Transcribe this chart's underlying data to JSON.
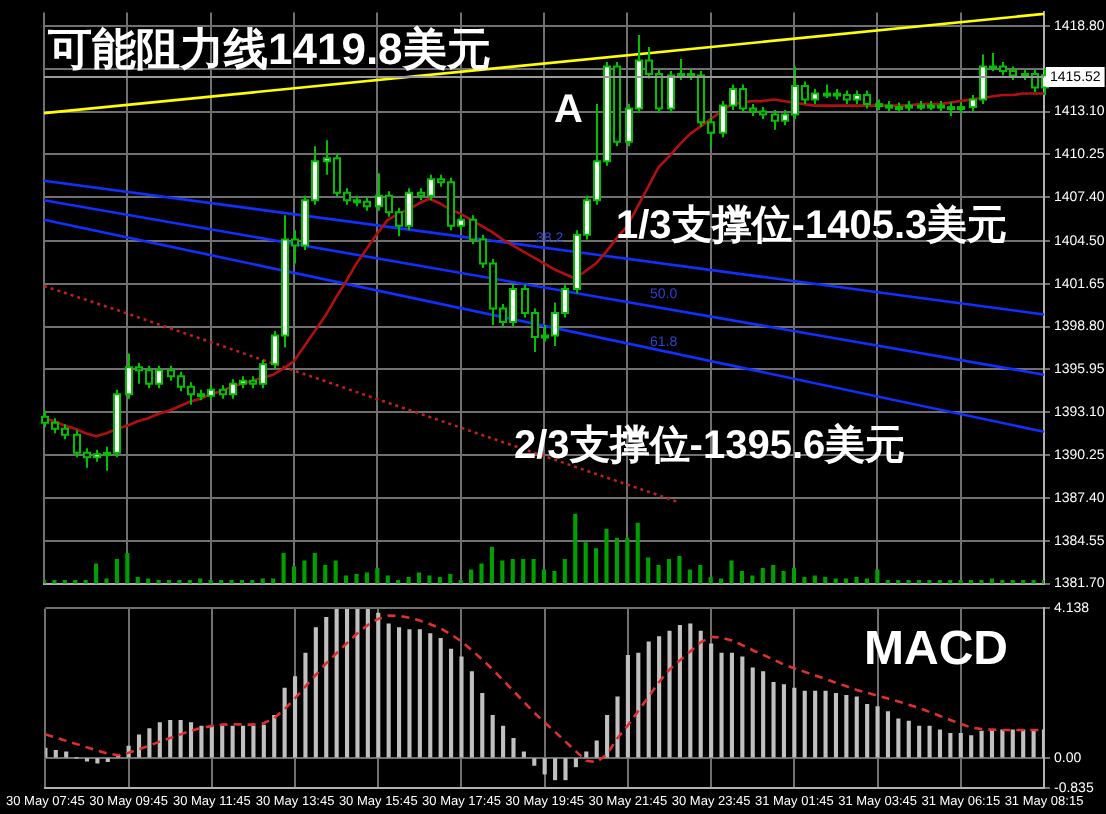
{
  "chart_data": [
    {
      "type": "candlestick",
      "title": "可能阻力线1419.8美元",
      "categories": [
        "30 May 07:45",
        null,
        null,
        null,
        null,
        null,
        null,
        null,
        "30 May 09:45",
        null,
        null,
        null,
        null,
        null,
        null,
        null,
        "30 May 11:45",
        null,
        null,
        null,
        null,
        null,
        null,
        null,
        "30 May 13:45",
        null,
        null,
        null,
        null,
        null,
        null,
        null,
        "30 May 15:45",
        null,
        null,
        null,
        null,
        null,
        null,
        null,
        "30 May 17:45",
        null,
        null,
        null,
        null,
        null,
        null,
        null,
        "30 May 19:45",
        null,
        null,
        null,
        null,
        null,
        null,
        null,
        "30 May 21:45",
        null,
        null,
        null,
        null,
        null,
        null,
        null,
        "30 May 23:45",
        null,
        null,
        null,
        null,
        null,
        null,
        null,
        "31 May 01:45",
        null,
        null,
        null,
        null,
        null,
        null,
        null,
        "31 May 03:45",
        null,
        null,
        null,
        null,
        null,
        null,
        null,
        "31 May 06:15",
        null,
        null,
        null,
        null,
        null,
        null,
        null,
        "31 May 08:15"
      ],
      "ohlc": [
        [
          1392.8,
          1393.2,
          1392.1,
          1392.4
        ],
        [
          1392.4,
          1392.7,
          1391.7,
          1392.0
        ],
        [
          1392.0,
          1392.3,
          1391.3,
          1391.6
        ],
        [
          1391.6,
          1391.9,
          1390.1,
          1390.4
        ],
        [
          1390.4,
          1390.7,
          1389.4,
          1390.1
        ],
        [
          1390.1,
          1390.6,
          1389.8,
          1390.3
        ],
        [
          1390.3,
          1390.8,
          1389.2,
          1390.4
        ],
        [
          1390.4,
          1394.6,
          1390.1,
          1394.3
        ],
        [
          1394.3,
          1397.0,
          1394.0,
          1396.1
        ],
        [
          1396.1,
          1396.4,
          1395.0,
          1395.9
        ],
        [
          1395.9,
          1396.2,
          1394.7,
          1395.0
        ],
        [
          1395.0,
          1396.2,
          1394.7,
          1395.9
        ],
        [
          1395.9,
          1396.2,
          1395.2,
          1395.5
        ],
        [
          1395.5,
          1395.8,
          1394.5,
          1394.8
        ],
        [
          1394.8,
          1395.1,
          1393.6,
          1394.3
        ],
        [
          1394.3,
          1394.6,
          1393.9,
          1394.2
        ],
        [
          1394.2,
          1394.9,
          1393.9,
          1394.6
        ],
        [
          1394.6,
          1394.9,
          1394.0,
          1394.3
        ],
        [
          1394.3,
          1395.3,
          1394.0,
          1395.0
        ],
        [
          1395.0,
          1395.5,
          1394.7,
          1395.2
        ],
        [
          1395.2,
          1395.5,
          1394.7,
          1395.0
        ],
        [
          1395.0,
          1396.6,
          1394.7,
          1396.3
        ],
        [
          1396.3,
          1398.5,
          1396.0,
          1398.2
        ],
        [
          1398.2,
          1406.2,
          1397.4,
          1404.6
        ],
        [
          1404.6,
          1405.2,
          1403.0,
          1404.2
        ],
        [
          1404.2,
          1407.5,
          1403.9,
          1407.2
        ],
        [
          1407.2,
          1410.8,
          1406.9,
          1409.8
        ],
        [
          1409.8,
          1411.2,
          1408.9,
          1410.0
        ],
        [
          1410.0,
          1410.3,
          1407.4,
          1407.7
        ],
        [
          1407.7,
          1408.0,
          1406.9,
          1407.2
        ],
        [
          1407.2,
          1407.5,
          1406.8,
          1407.1
        ],
        [
          1407.1,
          1407.4,
          1406.5,
          1406.8
        ],
        [
          1406.8,
          1409.0,
          1406.5,
          1407.5
        ],
        [
          1407.5,
          1407.8,
          1406.1,
          1406.4
        ],
        [
          1406.4,
          1406.7,
          1404.8,
          1405.5
        ],
        [
          1405.5,
          1408.0,
          1405.2,
          1407.7
        ],
        [
          1407.7,
          1408.0,
          1407.2,
          1407.5
        ],
        [
          1407.5,
          1408.9,
          1407.2,
          1408.6
        ],
        [
          1408.6,
          1408.9,
          1408.1,
          1408.4
        ],
        [
          1408.4,
          1408.7,
          1405.2,
          1405.5
        ],
        [
          1405.5,
          1406.2,
          1405.2,
          1405.9
        ],
        [
          1405.9,
          1406.2,
          1404.3,
          1404.6
        ],
        [
          1404.6,
          1404.9,
          1402.7,
          1403.0
        ],
        [
          1403.0,
          1403.3,
          1398.9,
          1400.0
        ],
        [
          1400.0,
          1400.3,
          1398.8,
          1399.1
        ],
        [
          1399.1,
          1401.6,
          1398.8,
          1401.3
        ],
        [
          1401.3,
          1401.6,
          1399.4,
          1399.7
        ],
        [
          1399.7,
          1400.0,
          1397.1,
          1398.1
        ],
        [
          1398.1,
          1398.9,
          1397.8,
          1398.2
        ],
        [
          1398.2,
          1400.4,
          1397.5,
          1399.7
        ],
        [
          1399.7,
          1401.6,
          1399.4,
          1401.3
        ],
        [
          1401.3,
          1405.2,
          1401.0,
          1404.9
        ],
        [
          1404.9,
          1407.5,
          1404.6,
          1407.2
        ],
        [
          1407.2,
          1413.6,
          1406.9,
          1409.8
        ],
        [
          1409.8,
          1416.4,
          1409.5,
          1416.1
        ],
        [
          1416.1,
          1416.4,
          1410.8,
          1411.1
        ],
        [
          1411.1,
          1413.6,
          1410.8,
          1413.3
        ],
        [
          1413.3,
          1418.2,
          1413.0,
          1416.5
        ],
        [
          1416.5,
          1417.4,
          1415.3,
          1415.6
        ],
        [
          1415.6,
          1415.9,
          1413.0,
          1413.3
        ],
        [
          1413.3,
          1415.8,
          1413.0,
          1415.5
        ],
        [
          1415.5,
          1416.6,
          1415.2,
          1415.6
        ],
        [
          1415.6,
          1415.9,
          1415.2,
          1415.5
        ],
        [
          1415.5,
          1415.8,
          1412.1,
          1412.4
        ],
        [
          1412.4,
          1412.7,
          1410.7,
          1411.7
        ],
        [
          1411.7,
          1413.8,
          1411.4,
          1413.5
        ],
        [
          1413.5,
          1414.9,
          1413.2,
          1414.6
        ],
        [
          1414.6,
          1414.9,
          1413.0,
          1413.3
        ],
        [
          1413.3,
          1413.6,
          1412.8,
          1413.1
        ],
        [
          1413.1,
          1413.4,
          1412.6,
          1412.9
        ],
        [
          1412.9,
          1413.2,
          1411.9,
          1412.5
        ],
        [
          1412.5,
          1413.2,
          1412.2,
          1412.9
        ],
        [
          1412.9,
          1416.1,
          1412.6,
          1414.8
        ],
        [
          1414.8,
          1415.1,
          1413.6,
          1413.9
        ],
        [
          1413.9,
          1414.6,
          1413.6,
          1414.3
        ],
        [
          1414.3,
          1414.9,
          1414.0,
          1414.3
        ],
        [
          1414.3,
          1414.6,
          1413.9,
          1414.2
        ],
        [
          1414.2,
          1414.5,
          1413.6,
          1413.9
        ],
        [
          1413.9,
          1414.5,
          1413.6,
          1414.2
        ],
        [
          1414.2,
          1414.5,
          1413.3,
          1413.6
        ],
        [
          1413.6,
          1413.9,
          1413.2,
          1413.5
        ],
        [
          1413.5,
          1413.8,
          1413.1,
          1413.4
        ],
        [
          1413.4,
          1413.7,
          1413.1,
          1413.4
        ],
        [
          1413.4,
          1413.8,
          1413.1,
          1413.5
        ],
        [
          1413.5,
          1413.8,
          1413.2,
          1413.5
        ],
        [
          1413.5,
          1413.8,
          1413.2,
          1413.5
        ],
        [
          1413.5,
          1413.8,
          1413.1,
          1413.4
        ],
        [
          1413.4,
          1413.7,
          1412.8,
          1413.3
        ],
        [
          1413.3,
          1413.7,
          1413.0,
          1413.4
        ],
        [
          1413.4,
          1414.2,
          1413.1,
          1413.9
        ],
        [
          1413.9,
          1416.9,
          1413.6,
          1416.1
        ],
        [
          1416.1,
          1417.0,
          1415.8,
          1416.1
        ],
        [
          1416.1,
          1416.4,
          1415.5,
          1415.8
        ],
        [
          1415.8,
          1416.1,
          1415.2,
          1415.5
        ],
        [
          1415.5,
          1415.9,
          1415.2,
          1415.6
        ],
        [
          1415.6,
          1415.9,
          1414.4,
          1414.7
        ],
        [
          1414.7,
          1416.0,
          1414.2,
          1415.52
        ]
      ],
      "color": "#00c000",
      "colors": [
        "#000000",
        "#000000",
        "#000000",
        "#000000",
        "#000000",
        "#ffffff",
        "#ffffff",
        "#ffffff",
        "#ffffff",
        "#000000",
        "#000000",
        "#ffffff",
        "#000000",
        "#000000",
        "#000000",
        "#000000",
        "#ffffff",
        "#000000",
        "#ffffff",
        "#ffffff",
        "#000000",
        "#ffffff",
        "#ffffff",
        "#ffffff",
        "#000000",
        "#ffffff",
        "#ffffff",
        "#ffffff",
        "#000000",
        "#000000",
        "#000000",
        "#000000",
        "#ffffff",
        "#000000",
        "#000000",
        "#ffffff",
        "#000000",
        "#ffffff",
        "#000000",
        "#000000",
        "#ffffff",
        "#000000",
        "#000000",
        "#000000",
        "#000000",
        "#ffffff",
        "#000000",
        "#000000",
        "#ffffff",
        "#ffffff",
        "#ffffff",
        "#ffffff",
        "#ffffff",
        "#ffffff",
        "#ffffff",
        "#000000",
        "#ffffff",
        "#ffffff",
        "#000000",
        "#000000",
        "#ffffff",
        "#ffffff",
        "#000000",
        "#000000",
        "#000000",
        "#ffffff",
        "#ffffff",
        "#000000",
        "#000000",
        "#000000",
        "#000000",
        "#ffffff",
        "#ffffff",
        "#000000",
        "#ffffff",
        "#ffffff",
        "#000000",
        "#000000",
        "#ffffff",
        "#000000",
        "#000000",
        "#000000",
        "#ffffff",
        "#ffffff",
        "#ffffff",
        "#ffffff",
        "#000000",
        "#000000",
        "#ffffff",
        "#ffffff",
        "#ffffff",
        "#ffffff",
        "#000000",
        "#000000",
        "#ffffff",
        "#000000",
        "#ffffff"
      ],
      "series": [
        {
          "type": "bar",
          "color": "#00a000",
          "values": [
            1381.9,
            1381.9,
            1381.9,
            1381.9,
            1381.9,
            1383.0,
            1382.0,
            1383.3,
            1383.7,
            1382.1,
            1382.0,
            1381.9,
            1381.9,
            1381.9,
            1381.9,
            1382.0,
            1381.9,
            1381.9,
            1381.9,
            1381.9,
            1381.9,
            1382.0,
            1382.0,
            1383.7,
            1382.8,
            1383.2,
            1383.7,
            1382.9,
            1383.2,
            1382.2,
            1382.3,
            1382.4,
            1382.7,
            1382.2,
            1381.9,
            1382.1,
            1382.4,
            1382.2,
            1382.1,
            1382.3,
            1381.9,
            1382.6,
            1383.0,
            1384.1,
            1383.2,
            1383.3,
            1383.3,
            1383.3,
            1382.6,
            1382.5,
            1383.3,
            1386.3,
            1384.4,
            1384.0,
            1385.3,
            1384.7,
            1384.7,
            1385.7,
            1383.4,
            1382.9,
            1383.3,
            1383.5,
            1382.6,
            1382.9,
            1382.1,
            1382.0,
            1383.2,
            1382.5,
            1382.2,
            1382.7,
            1382.9,
            1382.5,
            1382.7,
            1382.1,
            1382.2,
            1382.1,
            1382.0,
            1382.0,
            1382.1,
            1382.0,
            1382.6,
            1381.9,
            1381.9,
            1381.9,
            1381.9,
            1381.9,
            1381.9,
            1381.9,
            1381.9,
            1381.9,
            1381.9,
            1382.0,
            1381.9,
            1381.9,
            1381.9,
            1381.9,
            1381.9
          ]
        },
        {
          "type": "line",
          "color": "#b01010",
          "values": [
            1392.7,
            1392.5,
            1392.2,
            1392.0,
            1391.7,
            1391.5,
            1391.7,
            1392.0,
            1392.2,
            1392.5,
            1392.7,
            1393.0,
            1393.2,
            1393.5,
            1393.8,
            1394.0,
            1394.3,
            1394.5,
            1394.8,
            1395.0,
            1395.2,
            1395.4,
            1395.6,
            1396.0,
            1396.5,
            1397.5,
            1398.5,
            1399.5,
            1400.7,
            1401.8,
            1403.0,
            1404.0,
            1405.0,
            1405.9,
            1406.3,
            1406.6,
            1407.0,
            1407.3,
            1407.0,
            1406.6,
            1406.3,
            1405.9,
            1405.5,
            1405.1,
            1404.6,
            1404.2,
            1403.8,
            1403.4,
            1403.0,
            1402.6,
            1402.3,
            1402.0,
            1402.5,
            1403.0,
            1403.8,
            1404.7,
            1405.5,
            1406.8,
            1408.1,
            1409.4,
            1410.1,
            1410.9,
            1411.6,
            1412.1,
            1412.6,
            1413.1,
            1413.6,
            1413.7,
            1413.8,
            1413.8,
            1413.9,
            1413.8,
            1413.7,
            1413.6,
            1413.5,
            1413.5,
            1413.5,
            1413.5,
            1413.5,
            1413.5,
            1413.5,
            1413.5,
            1413.5,
            1413.5,
            1413.6,
            1413.6,
            1413.6,
            1413.7,
            1413.8,
            1413.9,
            1414.0,
            1414.1,
            1414.2,
            1414.2,
            1414.3,
            1414.3,
            1414.3
          ]
        },
        {
          "type": "line",
          "color": "#ffff00",
          "x": [
            "30 May 07:45",
            "31 May 08:15"
          ],
          "values": [
            1413.0,
            1419.6
          ]
        },
        {
          "type": "line",
          "color": "#1030ff",
          "x": [
            "30 May 07:45",
            "31 May 08:15"
          ],
          "values": [
            1408.5,
            1399.6
          ]
        },
        {
          "type": "line",
          "color": "#1030ff",
          "x": [
            "30 May 07:45",
            "31 May 08:15"
          ],
          "values": [
            1407.2,
            1395.6
          ]
        },
        {
          "type": "line",
          "color": "#1030ff",
          "x": [
            "30 May 07:45",
            "31 May 08:15"
          ],
          "values": [
            1405.9,
            1391.8
          ]
        },
        {
          "type": "line",
          "color": "#c02020",
          "line_style": "dotted",
          "values": [
            1401.5,
            null,
            null,
            null,
            null,
            null,
            null,
            1399.9,
            null,
            null,
            null,
            null,
            null,
            null,
            null,
            null,
            null,
            null,
            null,
            null,
            null,
            null,
            null,
            null,
            null,
            null,
            null,
            null,
            null,
            null,
            null,
            null,
            null,
            null,
            null,
            null,
            null,
            null,
            null,
            null,
            null,
            null,
            null,
            null,
            null,
            null,
            null,
            null,
            null,
            null,
            null,
            null,
            null,
            null,
            null,
            null,
            null,
            null,
            null,
            null,
            null,
            1387.1,
            null,
            null,
            null,
            null,
            null,
            null,
            null,
            null,
            null,
            null,
            null,
            null,
            null,
            null,
            null,
            null,
            null,
            null,
            null,
            null,
            null,
            null,
            null,
            null,
            null,
            null,
            null,
            null,
            null,
            null,
            null,
            null,
            null,
            null,
            null
          ]
        }
      ],
      "annotations": [
        "A",
        "1/3支撑位-1405.3美元",
        "2/3支撑位-1395.6美元",
        "38.2",
        "50.0",
        "61.8"
      ],
      "ref_lines": [
        {
          "axis": "y",
          "value": 1415.52,
          "label": "1415.52",
          "color": "#9a9a9a"
        }
      ],
      "ylim": [
        1381.7,
        1419.7
      ],
      "yticks": [
        {
          "value": 1381.7,
          "label": "1381.70"
        },
        1384.55,
        {
          "value": 1387.4,
          "label": "1387.40"
        },
        1390.25,
        {
          "value": 1393.1,
          "label": "1393.10"
        },
        1395.95,
        {
          "value": 1398.8,
          "label": "1398.80"
        },
        1401.65,
        {
          "value": 1404.5,
          "label": "1404.50"
        },
        {
          "value": 1407.4,
          "label": "1407.40"
        },
        1410.25,
        {
          "value": 1413.1,
          "label": "1413.10"
        },
        {
          "value": 1415.95,
          "label": null
        },
        {
          "value": 1418.8,
          "label": "1418.80"
        }
      ],
      "grid": true,
      "tick_labels": "y"
    },
    {
      "type": "bar",
      "categories": [
        "30 May 07:45",
        null,
        null,
        null,
        null,
        null,
        null,
        null,
        "30 May 09:45",
        null,
        null,
        null,
        null,
        null,
        null,
        null,
        "30 May 11:45",
        null,
        null,
        null,
        null,
        null,
        null,
        null,
        "30 May 13:45",
        null,
        null,
        null,
        null,
        null,
        null,
        null,
        "30 May 15:45",
        null,
        null,
        null,
        null,
        null,
        null,
        null,
        "30 May 17:45",
        null,
        null,
        null,
        null,
        null,
        null,
        null,
        "30 May 19:45",
        null,
        null,
        null,
        null,
        null,
        null,
        null,
        "30 May 21:45",
        null,
        null,
        null,
        null,
        null,
        null,
        null,
        "30 May 23:45",
        null,
        null,
        null,
        null,
        null,
        null,
        null,
        "31 May 01:45",
        null,
        null,
        null,
        null,
        null,
        null,
        null,
        "31 May 03:45",
        null,
        null,
        null,
        null,
        null,
        null,
        null,
        "31 May 06:15",
        null,
        null,
        null,
        null,
        null,
        null,
        null,
        "31 May 08:15"
      ],
      "series": [
        {
          "type": "bar",
          "color": "#c0c0c0",
          "values": [
            0.26,
            0.2,
            0.16,
            0,
            -0.08,
            -0.14,
            -0.1,
            0.06,
            0.32,
            0.63,
            0.8,
            0.97,
            1.03,
            1.03,
            0.97,
            0.87,
            0.87,
            0.87,
            0.87,
            0.87,
            0.87,
            0.9,
            1.17,
            1.92,
            2.24,
            2.89,
            3.6,
            3.88,
            4.1,
            4.1,
            4.1,
            4.1,
            4.0,
            3.7,
            3.6,
            3.54,
            3.54,
            3.43,
            3.3,
            3.0,
            2.79,
            2.38,
            1.78,
            1.17,
            0.87,
            0.53,
            0.16,
            -0.2,
            -0.44,
            -0.6,
            -0.6,
            -0.24,
            0.16,
            0.46,
            1.17,
            1.68,
            2.83,
            2.89,
            3.2,
            3.35,
            3.5,
            3.66,
            3.7,
            3.5,
            3.15,
            2.89,
            2.89,
            2.79,
            2.48,
            2.38,
            2.08,
            2.02,
            1.92,
            1.84,
            1.84,
            1.84,
            1.78,
            1.72,
            1.68,
            1.47,
            1.41,
            1.27,
            1.07,
            1.01,
            0.87,
            0.87,
            0.77,
            0.67,
            0.67,
            0.61,
            0.73,
            0.77,
            0.77,
            0.77,
            0.77,
            0.77,
            0.77
          ]
        },
        {
          "type": "line",
          "color": "#e03030",
          "line_style": "dashed",
          "values": [
            0.65,
            0.56,
            0.47,
            0.38,
            0.29,
            0.2,
            0.12,
            0.07,
            0.14,
            0.24,
            0.34,
            0.45,
            0.55,
            0.65,
            0.75,
            0.83,
            0.88,
            0.92,
            0.93,
            0.92,
            0.92,
            0.96,
            1.1,
            1.35,
            1.65,
            1.98,
            2.3,
            2.62,
            2.9,
            3.18,
            3.45,
            3.68,
            3.85,
            3.94,
            3.93,
            3.88,
            3.8,
            3.7,
            3.58,
            3.42,
            3.22,
            2.98,
            2.72,
            2.45,
            2.15,
            1.85,
            1.55,
            1.25,
            0.98,
            0.72,
            0.45,
            0.18,
            -0.08,
            -0.12,
            0.1,
            0.55,
            0.9,
            1.3,
            1.7,
            2.1,
            2.45,
            2.7,
            2.95,
            3.2,
            3.35,
            3.33,
            3.25,
            3.12,
            2.98,
            2.85,
            2.72,
            2.58,
            2.48,
            2.38,
            2.28,
            2.18,
            2.08,
            1.98,
            1.88,
            1.8,
            1.72,
            1.64,
            1.56,
            1.47,
            1.38,
            1.27,
            1.16,
            1.05,
            0.94,
            0.84,
            0.8,
            0.78,
            0.77,
            0.77,
            0.77,
            0.77,
            0.77
          ]
        }
      ],
      "annotations": [
        "MACD"
      ],
      "ylim": [
        -0.835,
        4.138
      ],
      "yticks": [
        4.138,
        {
          "value": 0,
          "label": "0.00"
        },
        -0.835
      ],
      "grid": true
    }
  ]
}
